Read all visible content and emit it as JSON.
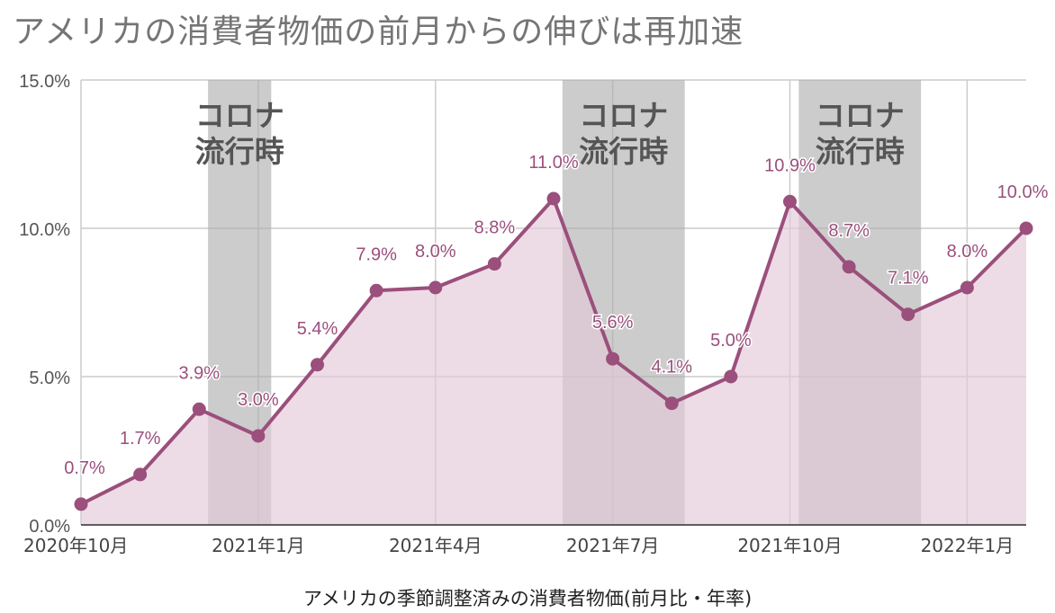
{
  "chart_data": {
    "type": "area",
    "title": "アメリカの消費者物価の前月からの伸びは再加速",
    "xlabel": "アメリカの季節調整済みの消費者物価(前月比・年率)",
    "ylabel": "",
    "ylim": [
      0,
      15
    ],
    "y_ticks": [
      {
        "value": 0,
        "label": "0.0%"
      },
      {
        "value": 5,
        "label": "5.0%"
      },
      {
        "value": 10,
        "label": "10.0%"
      },
      {
        "value": 15,
        "label": "15.0%"
      }
    ],
    "x_months": [
      "2020-10",
      "2020-11",
      "2020-12",
      "2021-01",
      "2021-02",
      "2021-03",
      "2021-04",
      "2021-05",
      "2021-06",
      "2021-07",
      "2021-08",
      "2021-09",
      "2021-10",
      "2021-11",
      "2021-12",
      "2022-01",
      "2022-02"
    ],
    "x_ticks": [
      {
        "month": "2020-10",
        "label": "2020年10月"
      },
      {
        "month": "2021-01",
        "label": "2021年1月"
      },
      {
        "month": "2021-04",
        "label": "2021年4月"
      },
      {
        "month": "2021-07",
        "label": "2021年7月"
      },
      {
        "month": "2021-10",
        "label": "2021年10月"
      },
      {
        "month": "2022-01",
        "label": "2022年1月"
      }
    ],
    "series": [
      {
        "values": [
          0.7,
          1.7,
          3.9,
          3.0,
          5.4,
          7.9,
          8.0,
          8.8,
          11.0,
          5.6,
          4.1,
          5.0,
          10.9,
          8.7,
          7.1,
          8.0,
          10.0
        ],
        "labels": [
          "0.7%",
          "1.7%",
          "3.9%",
          "3.0%",
          "5.4%",
          "7.9%",
          "8.0%",
          "8.8%",
          "11.0%",
          "5.6%",
          "4.1%",
          "5.0%",
          "10.9%",
          "8.7%",
          "7.1%",
          "8.0%",
          "10.0%"
        ]
      }
    ],
    "shaded_periods": [
      {
        "label_line1": "コロナ",
        "label_line2": "流行時",
        "from": "2020-12",
        "to": "2021-02"
      },
      {
        "label_line1": "コロナ",
        "label_line2": "流行時",
        "from": "2021-06",
        "to": "2021-09"
      },
      {
        "label_line1": "コロナ",
        "label_line2": "流行時",
        "from": "2021-10",
        "to": "2022-01"
      }
    ],
    "grid": true,
    "legend": "none",
    "colors": {
      "line": "#9b4f7c",
      "fill": "#e3c9d7",
      "shade": "#aaaaaa",
      "label": "#9b4f7c"
    }
  }
}
